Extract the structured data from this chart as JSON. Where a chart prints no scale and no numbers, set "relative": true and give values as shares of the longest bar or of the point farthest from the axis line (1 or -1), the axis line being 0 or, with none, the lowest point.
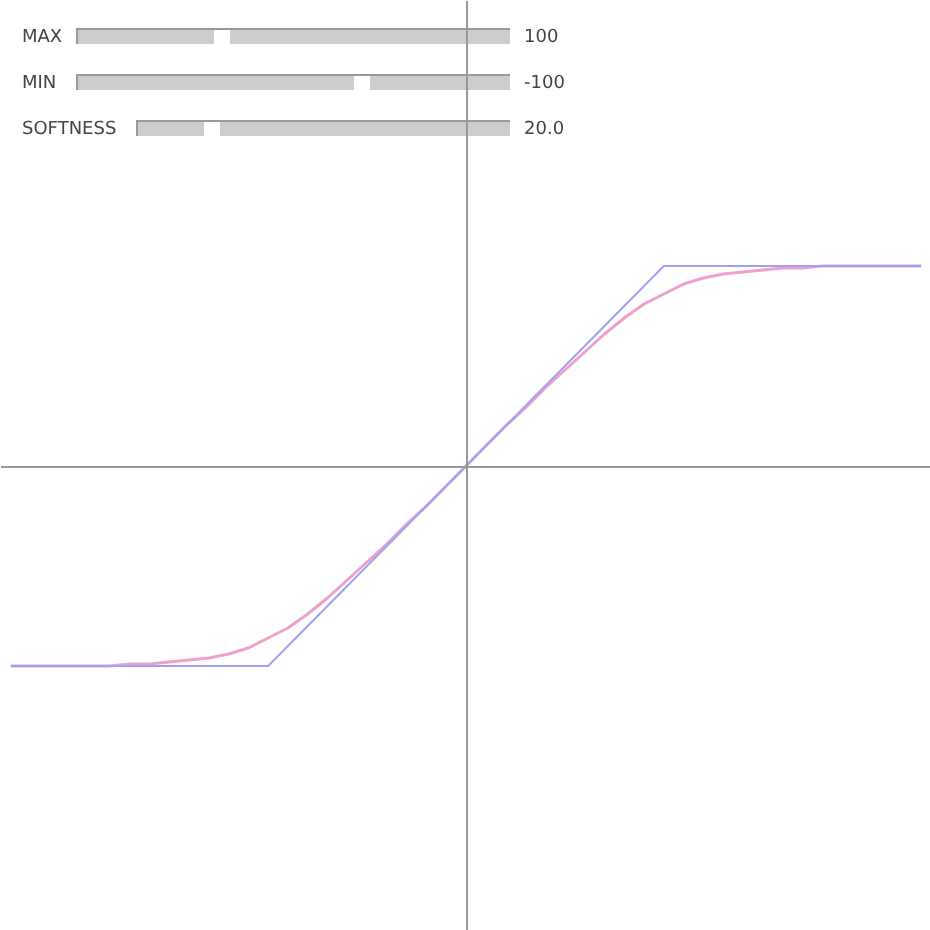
{
  "chart_data": {
    "type": "line",
    "relative": true,
    "categories": [
      null,
      null,
      null,
      null,
      null,
      null,
      null,
      null,
      null,
      null,
      null,
      null,
      null,
      null,
      null,
      null,
      null,
      null,
      null,
      null,
      null,
      null,
      null,
      null,
      null,
      null,
      null,
      null,
      null,
      null,
      null,
      null,
      null,
      null,
      null,
      null,
      null,
      null,
      null,
      null,
      null,
      null,
      null,
      null,
      null,
      null,
      null
    ],
    "series": [
      {
        "color": "#f0a0cc",
        "values": [
          -1,
          -1,
          -1,
          -1,
          -1,
          -1,
          -0.99,
          -0.99,
          -0.98,
          -0.97,
          -0.96,
          -0.94,
          -0.91,
          -0.86,
          -0.81,
          -0.74,
          -0.66,
          -0.57,
          -0.48,
          -0.39,
          -0.29,
          -0.2,
          -0.1,
          0,
          0.1,
          0.2,
          0.29,
          0.39,
          0.48,
          0.57,
          0.66,
          0.74,
          0.81,
          0.86,
          0.91,
          0.94,
          0.96,
          0.97,
          0.98,
          0.99,
          0.99,
          1,
          1,
          1,
          1,
          1,
          1
        ]
      },
      {
        "color": "#a0a0f8",
        "values": [
          -1,
          -1,
          -1,
          -1,
          -1,
          -1,
          -1,
          -1,
          -1,
          -1,
          -1,
          -1,
          -1,
          -1,
          -0.9,
          -0.8,
          -0.7,
          -0.6,
          -0.5,
          -0.4,
          -0.3,
          -0.2,
          -0.1,
          0,
          0.1,
          0.2,
          0.3,
          0.4,
          0.5,
          0.6,
          0.7,
          0.8,
          0.9,
          1,
          1,
          1,
          1,
          1,
          1,
          1,
          1,
          1,
          1,
          1,
          1,
          1,
          1
        ]
      }
    ],
    "annotations": [
      "MAX",
      "100",
      "MIN",
      "-100",
      "SOFTNESS",
      "20.0"
    ]
  }
}
